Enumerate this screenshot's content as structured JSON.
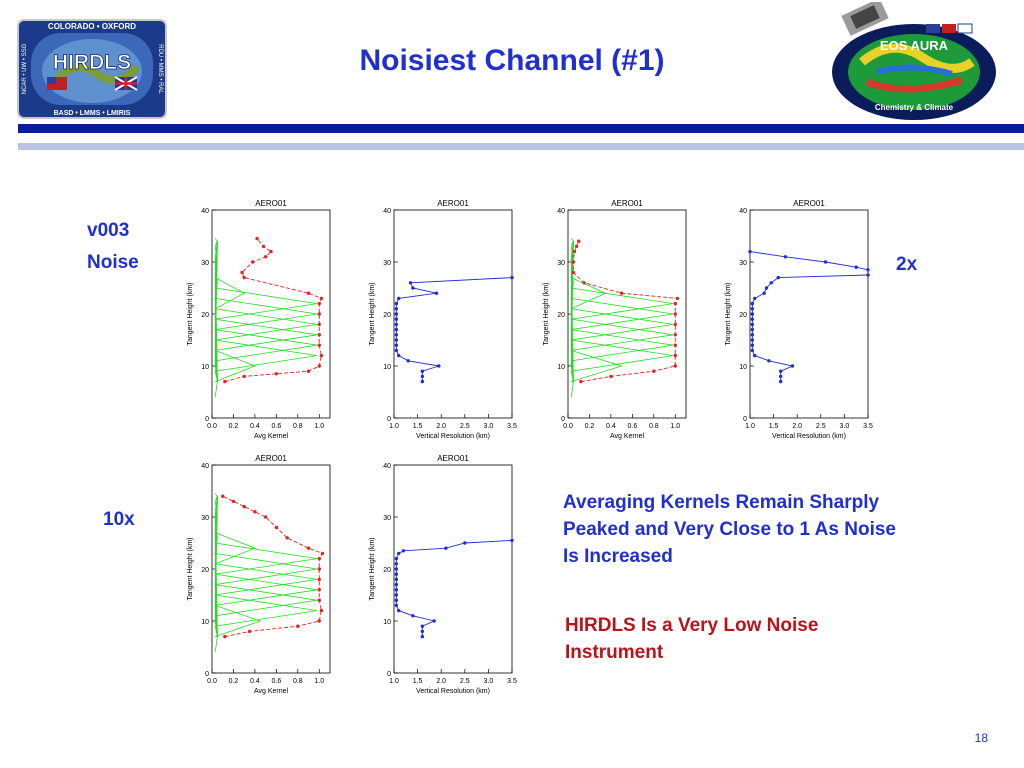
{
  "slide": {
    "title": "Noisiest Channel (#1)",
    "page_number": "18",
    "labels": {
      "v003": "v003",
      "noise": "Noise",
      "x2": "2x",
      "x10": "10x"
    },
    "notes": {
      "line1": "Averaging Kernels Remain Sharply",
      "line2": "Peaked and Very Close to 1 As Noise",
      "line3": "Is Increased",
      "red1": "HIRDLS Is a Very Low Noise",
      "red2": "Instrument"
    },
    "logos": {
      "hirdls": {
        "text": "HIRDLS",
        "top": "COLORADO • OXFORD",
        "bottom": "BASD • LMMS • LMIRIS",
        "left": "NCAR • UW • SSG",
        "right": "RDU • MMS • RAL"
      },
      "eos": {
        "text": "EOS AURA",
        "sub": "Chemistry & Climate"
      }
    },
    "colors": {
      "title": "#1f2fd0",
      "kernel": "#22dd22",
      "resolution": "#1f2fd0",
      "diag": "#e32222",
      "red_note": "#b8141a"
    }
  },
  "chart_data": [
    {
      "type": "line",
      "panel": "v003 kernel",
      "title": "AERO01",
      "xlabel": "Avg Kernel",
      "ylabel": "Tangent Height (km)",
      "xlim": [
        0,
        1.1
      ],
      "ylim": [
        0,
        40
      ],
      "xticks": [
        "0.0",
        "0.2",
        "0.4",
        "0.6",
        "0.8",
        "1.0"
      ],
      "yticks": [
        "0",
        "10",
        "20",
        "30",
        "40"
      ],
      "series": [
        {
          "kind": "diagonal",
          "points": [
            [
              0.12,
              7
            ],
            [
              0.3,
              8
            ],
            [
              0.6,
              8.5
            ],
            [
              0.9,
              9
            ],
            [
              1.0,
              10
            ],
            [
              1.02,
              12
            ],
            [
              1.0,
              14
            ],
            [
              1.0,
              16
            ],
            [
              1.0,
              18
            ],
            [
              1.0,
              20
            ],
            [
              1.0,
              22
            ],
            [
              1.02,
              23
            ],
            [
              0.9,
              24
            ],
            [
              0.3,
              27
            ],
            [
              0.28,
              28
            ],
            [
              0.38,
              30
            ],
            [
              0.5,
              31
            ],
            [
              0.55,
              32
            ],
            [
              0.48,
              33
            ],
            [
              0.42,
              34.5
            ]
          ]
        }
      ],
      "kernel_peaks": [
        [
          0.05,
          7
        ],
        [
          0.4,
          10
        ],
        [
          0.98,
          12
        ],
        [
          0.98,
          14
        ],
        [
          0.98,
          16
        ],
        [
          0.98,
          18
        ],
        [
          0.98,
          20
        ],
        [
          0.98,
          22
        ],
        [
          0.3,
          24
        ],
        [
          0.05,
          26
        ],
        [
          0.05,
          30
        ],
        [
          0.05,
          34
        ]
      ]
    },
    {
      "type": "line",
      "panel": "v003 resolution",
      "title": "AERO01",
      "xlabel": "Vertical Resolution (km)",
      "ylabel": "Tangent Height (km)",
      "xlim": [
        1.0,
        3.5
      ],
      "ylim": [
        0,
        40
      ],
      "xticks": [
        "1.0",
        "1.5",
        "2.0",
        "2.5",
        "3.0",
        "3.5"
      ],
      "yticks": [
        "0",
        "10",
        "20",
        "30",
        "40"
      ],
      "series": [
        {
          "kind": "resolution",
          "points": [
            [
              1.6,
              7
            ],
            [
              1.6,
              8
            ],
            [
              1.6,
              9
            ],
            [
              1.95,
              10
            ],
            [
              1.3,
              11
            ],
            [
              1.1,
              12
            ],
            [
              1.05,
              13
            ],
            [
              1.05,
              14
            ],
            [
              1.05,
              15
            ],
            [
              1.05,
              16
            ],
            [
              1.05,
              17
            ],
            [
              1.05,
              18
            ],
            [
              1.05,
              19
            ],
            [
              1.05,
              20
            ],
            [
              1.05,
              21
            ],
            [
              1.05,
              22
            ],
            [
              1.1,
              23
            ],
            [
              1.9,
              24
            ],
            [
              1.4,
              25
            ],
            [
              1.35,
              26
            ],
            [
              3.5,
              27
            ]
          ]
        }
      ]
    },
    {
      "type": "line",
      "panel": "2x kernel",
      "title": "AERO01",
      "xlabel": "Avg Kernel",
      "ylabel": "Tangent Height (km)",
      "xlim": [
        0,
        1.1
      ],
      "ylim": [
        0,
        40
      ],
      "xticks": [
        "0.0",
        "0.2",
        "0.4",
        "0.6",
        "0.8",
        "1.0"
      ],
      "yticks": [
        "0",
        "10",
        "20",
        "30",
        "40"
      ],
      "series": [
        {
          "kind": "diagonal",
          "points": [
            [
              0.12,
              7
            ],
            [
              0.4,
              8
            ],
            [
              0.8,
              9
            ],
            [
              1.0,
              10
            ],
            [
              1.0,
              12
            ],
            [
              1.0,
              14
            ],
            [
              1.0,
              16
            ],
            [
              1.0,
              18
            ],
            [
              1.0,
              20
            ],
            [
              1.0,
              22
            ],
            [
              1.02,
              23
            ],
            [
              0.5,
              24
            ],
            [
              0.15,
              26
            ],
            [
              0.05,
              28
            ],
            [
              0.05,
              30
            ],
            [
              0.06,
              32
            ],
            [
              0.08,
              33
            ],
            [
              0.1,
              34
            ]
          ]
        }
      ],
      "kernel_peaks": [
        [
          0.05,
          7
        ],
        [
          0.5,
          10
        ],
        [
          0.98,
          12
        ],
        [
          0.98,
          14
        ],
        [
          0.98,
          16
        ],
        [
          0.98,
          18
        ],
        [
          0.98,
          20
        ],
        [
          0.98,
          22
        ],
        [
          0.35,
          24
        ],
        [
          0.05,
          26
        ],
        [
          0.05,
          30
        ],
        [
          0.05,
          34
        ]
      ]
    },
    {
      "type": "line",
      "panel": "2x resolution",
      "title": "AERO01",
      "xlabel": "Vertical Resolution (km)",
      "ylabel": "Tangent Height (km)",
      "xlim": [
        1.0,
        3.5
      ],
      "ylim": [
        0,
        40
      ],
      "xticks": [
        "1.0",
        "1.5",
        "2.0",
        "2.5",
        "3.0",
        "3.5"
      ],
      "yticks": [
        "0",
        "10",
        "20",
        "30",
        "40"
      ],
      "series": [
        {
          "kind": "resolution",
          "points": [
            [
              1.65,
              7
            ],
            [
              1.65,
              8
            ],
            [
              1.65,
              9
            ],
            [
              1.9,
              10
            ],
            [
              1.4,
              11
            ],
            [
              1.1,
              12
            ],
            [
              1.05,
              13
            ],
            [
              1.05,
              14
            ],
            [
              1.05,
              15
            ],
            [
              1.05,
              16
            ],
            [
              1.05,
              17
            ],
            [
              1.05,
              18
            ],
            [
              1.05,
              19
            ],
            [
              1.05,
              20
            ],
            [
              1.05,
              21
            ],
            [
              1.05,
              22
            ],
            [
              1.1,
              23
            ],
            [
              1.3,
              24
            ],
            [
              1.35,
              25
            ],
            [
              1.45,
              26
            ],
            [
              1.6,
              27
            ],
            [
              3.5,
              27.5
            ]
          ]
        },
        {
          "kind": "resolution",
          "points": [
            [
              1.0,
              32
            ],
            [
              1.75,
              31
            ],
            [
              2.6,
              30
            ],
            [
              3.25,
              29
            ],
            [
              3.5,
              28.5
            ]
          ]
        }
      ]
    },
    {
      "type": "line",
      "panel": "10x kernel",
      "title": "AERO01",
      "xlabel": "Avg Kernel",
      "ylabel": "Tangent Height (km)",
      "xlim": [
        0,
        1.1
      ],
      "ylim": [
        0,
        40
      ],
      "xticks": [
        "0.0",
        "0.2",
        "0.4",
        "0.6",
        "0.8",
        "1.0"
      ],
      "yticks": [
        "0",
        "10",
        "20",
        "30",
        "40"
      ],
      "series": [
        {
          "kind": "diagonal",
          "points": [
            [
              0.12,
              7
            ],
            [
              0.35,
              8
            ],
            [
              0.8,
              9
            ],
            [
              1.0,
              10
            ],
            [
              1.02,
              12
            ],
            [
              1.0,
              14
            ],
            [
              1.0,
              16
            ],
            [
              1.0,
              18
            ],
            [
              1.0,
              20
            ],
            [
              1.0,
              22
            ],
            [
              1.03,
              23
            ],
            [
              0.9,
              24
            ],
            [
              0.7,
              26
            ],
            [
              0.6,
              28
            ],
            [
              0.5,
              30
            ],
            [
              0.4,
              31
            ],
            [
              0.3,
              32
            ],
            [
              0.2,
              33
            ],
            [
              0.1,
              34
            ]
          ]
        }
      ],
      "kernel_peaks": [
        [
          0.05,
          7
        ],
        [
          0.45,
          10
        ],
        [
          0.98,
          12
        ],
        [
          0.98,
          14
        ],
        [
          0.98,
          16
        ],
        [
          0.98,
          18
        ],
        [
          0.98,
          20
        ],
        [
          0.98,
          22
        ],
        [
          0.4,
          24
        ],
        [
          0.05,
          26
        ],
        [
          0.05,
          30
        ],
        [
          0.05,
          34
        ]
      ]
    },
    {
      "type": "line",
      "panel": "10x resolution",
      "title": "AERO01",
      "xlabel": "Vertical Resolution (km)",
      "ylabel": "Tangent Height (km)",
      "xlim": [
        1.0,
        3.5
      ],
      "ylim": [
        0,
        40
      ],
      "xticks": [
        "1.0",
        "1.5",
        "2.0",
        "2.5",
        "3.0",
        "3.5"
      ],
      "yticks": [
        "0",
        "10",
        "20",
        "30",
        "40"
      ],
      "series": [
        {
          "kind": "resolution",
          "points": [
            [
              1.6,
              7
            ],
            [
              1.6,
              8
            ],
            [
              1.6,
              9
            ],
            [
              1.85,
              10
            ],
            [
              1.4,
              11
            ],
            [
              1.1,
              12
            ],
            [
              1.05,
              13
            ],
            [
              1.05,
              14
            ],
            [
              1.05,
              15
            ],
            [
              1.05,
              16
            ],
            [
              1.05,
              17
            ],
            [
              1.05,
              18
            ],
            [
              1.05,
              19
            ],
            [
              1.05,
              20
            ],
            [
              1.05,
              21
            ],
            [
              1.05,
              22
            ],
            [
              1.1,
              23
            ],
            [
              1.2,
              23.5
            ],
            [
              2.1,
              24
            ],
            [
              2.5,
              25
            ],
            [
              3.5,
              25.5
            ]
          ]
        }
      ]
    }
  ]
}
